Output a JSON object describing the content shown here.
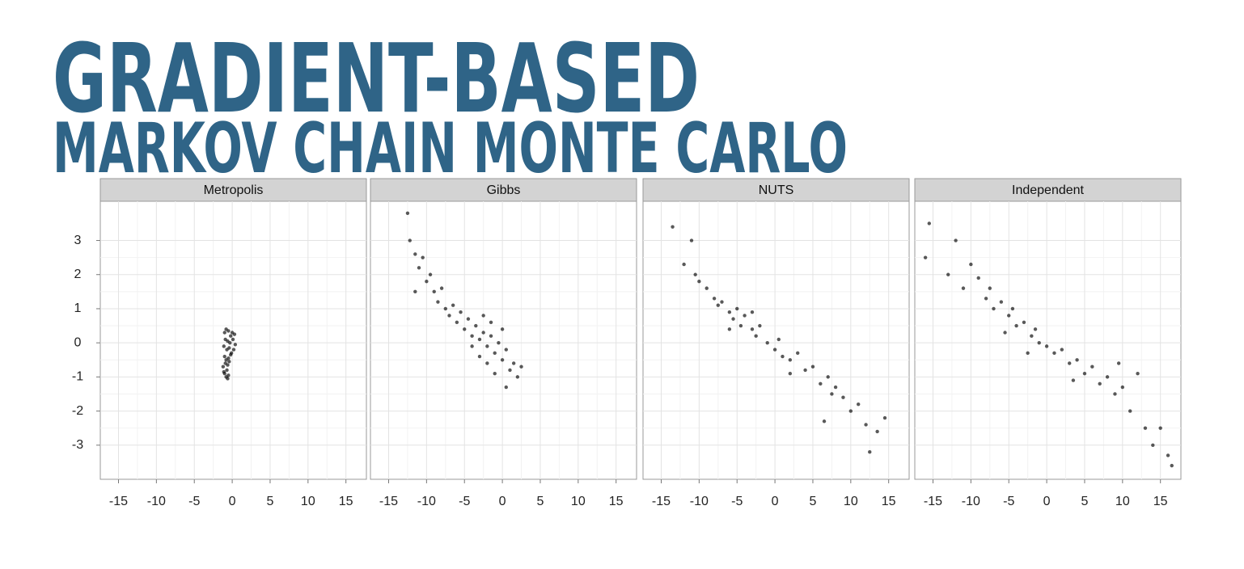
{
  "title": {
    "line1": "GRADIENT-BASED",
    "line2": "MARKOV CHAIN MONTE CARLO"
  },
  "chart_data": [
    {
      "type": "scatter",
      "title": "Metropolis",
      "color": "#000000",
      "x": [
        -1,
        -0.8,
        -0.5,
        -0.2,
        0,
        0.3,
        -0.9,
        -0.6,
        -0.3,
        0.1,
        0.4,
        -1.1,
        -0.7,
        -0.4,
        -0.1,
        0.2,
        -1,
        -0.8,
        -0.5,
        -0.2,
        -0.9,
        -0.6,
        -1.2,
        -0.7,
        -0.4,
        -1,
        -0.8,
        -0.5,
        -1.1,
        -0.6
      ],
      "y": [
        0.3,
        0.4,
        0.35,
        0.2,
        0.3,
        0.25,
        0.1,
        0.05,
        0,
        0.1,
        -0.05,
        -0.1,
        -0.2,
        -0.15,
        -0.3,
        -0.2,
        -0.4,
        -0.5,
        -0.45,
        -0.35,
        -0.6,
        -0.65,
        -0.7,
        -0.8,
        -0.55,
        -0.9,
        -1,
        -0.95,
        -0.85,
        -1.05
      ],
      "xlim": [
        -17.4,
        17.7
      ],
      "ylim": [
        -4,
        4.15
      ],
      "xticks": [
        -15,
        -10,
        -5,
        0,
        5,
        10,
        15
      ],
      "yticks": [
        -3,
        -2,
        -1,
        0,
        1,
        2,
        3
      ],
      "grid": true
    },
    {
      "type": "scatter",
      "title": "Gibbs",
      "color": "#000000",
      "x": [
        -12.5,
        -12.2,
        -11.5,
        -11,
        -10.5,
        -10,
        -9.5,
        -9,
        -8.5,
        -8,
        -7.5,
        -7,
        -6.5,
        -6,
        -5.5,
        -5,
        -4.5,
        -4,
        -3.5,
        -3,
        -2.5,
        -2,
        -1.5,
        -1,
        -0.5,
        0,
        0.5,
        1,
        1.5,
        2,
        -3,
        -2,
        -1,
        0,
        -4,
        -2.5,
        -1.5,
        0.5,
        2.5,
        -11.5
      ],
      "y": [
        3.8,
        3,
        2.6,
        2.2,
        2.5,
        1.8,
        2,
        1.5,
        1.2,
        1.6,
        1,
        0.8,
        1.1,
        0.6,
        0.9,
        0.4,
        0.7,
        0.2,
        0.5,
        0.1,
        0.3,
        -0.1,
        0.2,
        -0.3,
        0,
        -0.5,
        -0.2,
        -0.8,
        -0.6,
        -1,
        -0.4,
        -0.6,
        -0.9,
        0.4,
        -0.1,
        0.8,
        0.6,
        -1.3,
        -0.7,
        1.5
      ],
      "xlim": [
        -17.4,
        17.7
      ],
      "ylim": [
        -4,
        4.15
      ],
      "xticks": [
        -15,
        -10,
        -5,
        0,
        5,
        10,
        15
      ],
      "yticks": [
        -3,
        -2,
        -1,
        0,
        1,
        2,
        3
      ],
      "grid": true
    },
    {
      "type": "scatter",
      "title": "NUTS",
      "color": "#000000",
      "x": [
        -13.5,
        -11,
        -12,
        -10.5,
        -10,
        -9,
        -8,
        -7.5,
        -7,
        -6,
        -5.5,
        -5,
        -4.5,
        -4,
        -3,
        -2.5,
        -2,
        -1,
        0,
        0.5,
        1,
        2,
        3,
        4,
        5,
        6,
        7,
        7.5,
        8,
        9,
        10,
        11,
        12,
        12.5,
        13.5,
        14.5,
        -6,
        -3,
        2,
        6.5
      ],
      "y": [
        3.4,
        3,
        2.3,
        2,
        1.8,
        1.6,
        1.3,
        1.1,
        1.2,
        0.9,
        0.7,
        1,
        0.5,
        0.8,
        0.4,
        0.2,
        0.5,
        0,
        -0.2,
        0.1,
        -0.4,
        -0.5,
        -0.3,
        -0.8,
        -0.7,
        -1.2,
        -1,
        -1.5,
        -1.3,
        -1.6,
        -2,
        -1.8,
        -2.4,
        -3.2,
        -2.6,
        -2.2,
        0.4,
        0.9,
        -0.9,
        -2.3
      ],
      "xlim": [
        -17.4,
        17.7
      ],
      "ylim": [
        -4,
        4.15
      ],
      "xticks": [
        -15,
        -10,
        -5,
        0,
        5,
        10,
        15
      ],
      "yticks": [
        -3,
        -2,
        -1,
        0,
        1,
        2,
        3
      ],
      "grid": true
    },
    {
      "type": "scatter",
      "title": "Independent",
      "color": "#000000",
      "x": [
        -15.5,
        -16,
        -12,
        -13,
        -10,
        -11,
        -9,
        -8,
        -7.5,
        -7,
        -6,
        -5,
        -4.5,
        -4,
        -3,
        -2,
        -1.5,
        -1,
        0,
        1,
        2,
        3,
        4,
        5,
        6,
        7,
        8,
        9,
        10,
        11,
        12,
        13,
        14,
        15,
        16,
        16.5,
        -5.5,
        -2.5,
        3.5,
        9.5
      ],
      "y": [
        3.5,
        2.5,
        3,
        2,
        2.3,
        1.6,
        1.9,
        1.3,
        1.6,
        1,
        1.2,
        0.8,
        1,
        0.5,
        0.6,
        0.2,
        0.4,
        0,
        -0.1,
        -0.3,
        -0.2,
        -0.6,
        -0.5,
        -0.9,
        -0.7,
        -1.2,
        -1,
        -1.5,
        -1.3,
        -2,
        -0.9,
        -2.5,
        -3,
        -2.5,
        -3.3,
        -3.6,
        0.3,
        -0.3,
        -1.1,
        -0.6
      ],
      "xlim": [
        -17.4,
        17.7
      ],
      "ylim": [
        -4,
        4.15
      ],
      "xticks": [
        -15,
        -10,
        -5,
        0,
        5,
        10,
        15
      ],
      "yticks": [
        -3,
        -2,
        -1,
        0,
        1,
        2,
        3
      ],
      "grid": true
    }
  ]
}
